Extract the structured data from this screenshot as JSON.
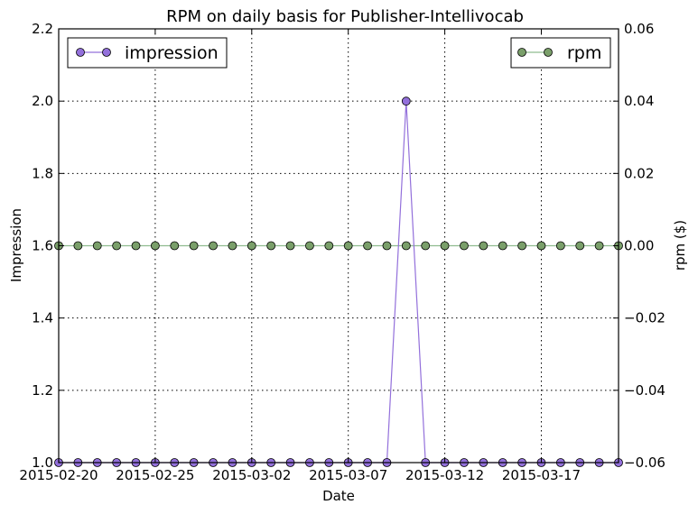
{
  "chart_data": {
    "type": "line",
    "title": "RPM on daily basis for Publisher-Intellivocab",
    "xlabel": "Date",
    "ylabel": "Impression",
    "y2label": "rpm ($)",
    "x": [
      "2015-02-20",
      "2015-02-21",
      "2015-02-22",
      "2015-02-23",
      "2015-02-24",
      "2015-02-25",
      "2015-02-26",
      "2015-02-27",
      "2015-02-28",
      "2015-03-01",
      "2015-03-02",
      "2015-03-03",
      "2015-03-04",
      "2015-03-05",
      "2015-03-06",
      "2015-03-07",
      "2015-03-08",
      "2015-03-09",
      "2015-03-10",
      "2015-03-11",
      "2015-03-12",
      "2015-03-13",
      "2015-03-14",
      "2015-03-15",
      "2015-03-16",
      "2015-03-17",
      "2015-03-18",
      "2015-03-19",
      "2015-03-20",
      "2015-03-21"
    ],
    "xticks": [
      "2015-02-20",
      "2015-02-25",
      "2015-03-02",
      "2015-03-07",
      "2015-03-12",
      "2015-03-17"
    ],
    "xlim": [
      "2015-02-20",
      "2015-03-21"
    ],
    "ylim": [
      1.0,
      2.2
    ],
    "yticks": [
      "1.0",
      "1.2",
      "1.4",
      "1.6",
      "1.8",
      "2.0",
      "2.2"
    ],
    "y2lim": [
      -0.06,
      0.06
    ],
    "y2ticks": [
      "−0.06",
      "−0.04",
      "−0.02",
      "0.00",
      "0.02",
      "0.04",
      "0.06"
    ],
    "grid": true,
    "series": [
      {
        "name": "impression",
        "axis": "left",
        "color": "#9370DB",
        "legend_position": "upper-left",
        "values": [
          1,
          1,
          1,
          1,
          1,
          1,
          1,
          1,
          1,
          1,
          1,
          1,
          1,
          1,
          1,
          1,
          1,
          1,
          2,
          1,
          1,
          1,
          1,
          1,
          1,
          1,
          1,
          1,
          1,
          1
        ]
      },
      {
        "name": "rpm",
        "axis": "right",
        "color": "#7A9F6A",
        "line_color": "#8FBC8F",
        "legend_position": "upper-right",
        "values": [
          0,
          0,
          0,
          0,
          0,
          0,
          0,
          0,
          0,
          0,
          0,
          0,
          0,
          0,
          0,
          0,
          0,
          0,
          0,
          0,
          0,
          0,
          0,
          0,
          0,
          0,
          0,
          0,
          0,
          0
        ]
      }
    ]
  }
}
